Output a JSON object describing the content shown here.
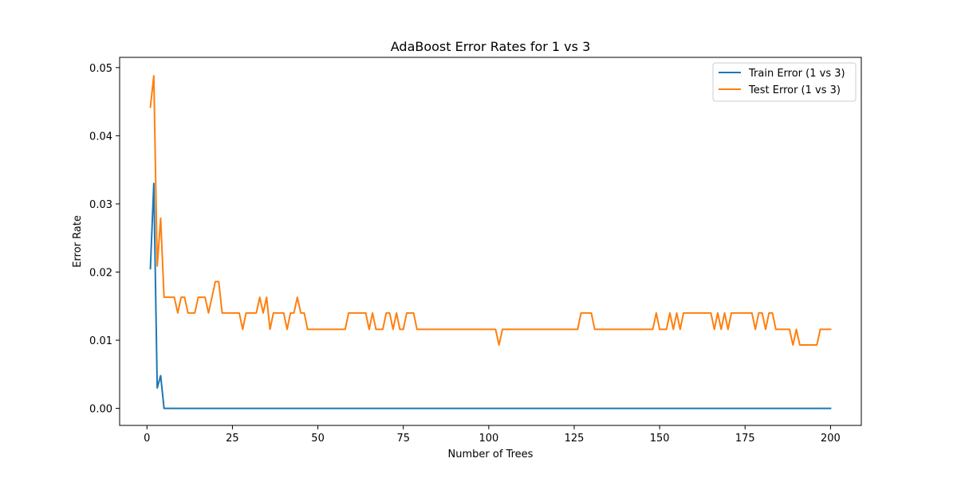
{
  "chart_data": {
    "type": "line",
    "title": "AdaBoost Error Rates for 1 vs 3",
    "xlabel": "Number of Trees",
    "ylabel": "Error Rate",
    "xlim": [
      -8,
      209
    ],
    "ylim": [
      -0.0025,
      0.0515
    ],
    "xticks": [
      0,
      25,
      50,
      75,
      100,
      125,
      150,
      175,
      200
    ],
    "yticks": [
      0.0,
      0.01,
      0.02,
      0.03,
      0.04,
      0.05
    ],
    "ytick_labels": [
      "0.00",
      "0.01",
      "0.02",
      "0.03",
      "0.04",
      "0.05"
    ],
    "grid": false,
    "legend": "top-right",
    "series": [
      {
        "name": "Train Error (1 vs 3)",
        "color": "#1f77b4",
        "points": [
          [
            1,
            0.0205
          ],
          [
            2,
            0.033
          ],
          [
            3,
            0.003
          ],
          [
            4,
            0.0048
          ],
          [
            5,
            0.0
          ],
          [
            200,
            0.0
          ]
        ]
      },
      {
        "name": "Test Error (1 vs 3)",
        "color": "#ff7f0e",
        "points": [
          [
            1,
            0.0442
          ],
          [
            2,
            0.0488
          ],
          [
            3,
            0.0209
          ],
          [
            4,
            0.0279
          ],
          [
            5,
            0.0163
          ],
          [
            6,
            0.0163
          ],
          [
            7,
            0.0163
          ],
          [
            8,
            0.0163
          ],
          [
            9,
            0.014
          ],
          [
            10,
            0.0163
          ],
          [
            11,
            0.0163
          ],
          [
            12,
            0.014
          ],
          [
            13,
            0.014
          ],
          [
            14,
            0.014
          ],
          [
            15,
            0.0163
          ],
          [
            16,
            0.0163
          ],
          [
            17,
            0.0163
          ],
          [
            18,
            0.014
          ],
          [
            19,
            0.0163
          ],
          [
            20,
            0.0186
          ],
          [
            21,
            0.0186
          ],
          [
            22,
            0.014
          ],
          [
            23,
            0.014
          ],
          [
            24,
            0.014
          ],
          [
            25,
            0.014
          ],
          [
            26,
            0.014
          ],
          [
            27,
            0.014
          ],
          [
            28,
            0.0116
          ],
          [
            29,
            0.014
          ],
          [
            30,
            0.014
          ],
          [
            31,
            0.014
          ],
          [
            32,
            0.014
          ],
          [
            33,
            0.0163
          ],
          [
            34,
            0.014
          ],
          [
            35,
            0.0163
          ],
          [
            36,
            0.0116
          ],
          [
            37,
            0.014
          ],
          [
            38,
            0.014
          ],
          [
            39,
            0.014
          ],
          [
            40,
            0.014
          ],
          [
            41,
            0.0116
          ],
          [
            42,
            0.014
          ],
          [
            43,
            0.014
          ],
          [
            44,
            0.0163
          ],
          [
            45,
            0.014
          ],
          [
            46,
            0.014
          ],
          [
            47,
            0.0116
          ],
          [
            48,
            0.0116
          ],
          [
            58,
            0.0116
          ],
          [
            59,
            0.014
          ],
          [
            64,
            0.014
          ],
          [
            65,
            0.0116
          ],
          [
            66,
            0.014
          ],
          [
            67,
            0.0116
          ],
          [
            69,
            0.0116
          ],
          [
            70,
            0.014
          ],
          [
            71,
            0.014
          ],
          [
            72,
            0.0116
          ],
          [
            73,
            0.014
          ],
          [
            74,
            0.0116
          ],
          [
            75,
            0.0116
          ],
          [
            76,
            0.014
          ],
          [
            78,
            0.014
          ],
          [
            79,
            0.0116
          ],
          [
            102,
            0.0116
          ],
          [
            103,
            0.0093
          ],
          [
            104,
            0.0116
          ],
          [
            126,
            0.0116
          ],
          [
            127,
            0.014
          ],
          [
            130,
            0.014
          ],
          [
            131,
            0.0116
          ],
          [
            148,
            0.0116
          ],
          [
            149,
            0.014
          ],
          [
            150,
            0.0116
          ],
          [
            152,
            0.0116
          ],
          [
            153,
            0.014
          ],
          [
            154,
            0.0116
          ],
          [
            155,
            0.014
          ],
          [
            156,
            0.0116
          ],
          [
            157,
            0.014
          ],
          [
            165,
            0.014
          ],
          [
            166,
            0.0116
          ],
          [
            167,
            0.014
          ],
          [
            168,
            0.0116
          ],
          [
            169,
            0.014
          ],
          [
            170,
            0.0116
          ],
          [
            171,
            0.014
          ],
          [
            177,
            0.014
          ],
          [
            178,
            0.0116
          ],
          [
            179,
            0.014
          ],
          [
            180,
            0.014
          ],
          [
            181,
            0.0116
          ],
          [
            182,
            0.014
          ],
          [
            183,
            0.014
          ],
          [
            184,
            0.0116
          ],
          [
            188,
            0.0116
          ],
          [
            189,
            0.0093
          ],
          [
            190,
            0.0116
          ],
          [
            191,
            0.0093
          ],
          [
            196,
            0.0093
          ],
          [
            197,
            0.0116
          ],
          [
            200,
            0.0116
          ]
        ]
      }
    ]
  }
}
